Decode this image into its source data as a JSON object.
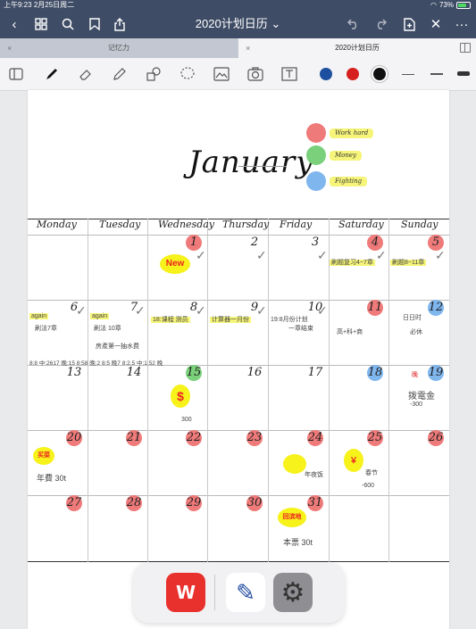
{
  "status": {
    "time": "上午9:23",
    "date": "2月25日周二",
    "battery": "73%",
    "battery_level": 0.73
  },
  "topbar": {
    "title": "2020计划日历",
    "icons": [
      "back-icon",
      "grid-icon",
      "search-icon",
      "bookmark-icon",
      "share-icon",
      "undo-icon",
      "redo-icon",
      "add-page-icon",
      "close-icon",
      "more-icon"
    ]
  },
  "tabs": [
    {
      "label": "记忆力",
      "close": "×"
    },
    {
      "label": "2020计划日历",
      "close": "×"
    }
  ],
  "toolbar": {
    "tools": [
      "sidebar-icon",
      "pen-icon",
      "eraser-icon",
      "highlighter-icon",
      "shapes-icon",
      "lasso-icon",
      "image-icon",
      "camera-icon",
      "text-icon"
    ],
    "colors": [
      "#1c4fa0",
      "#d62020",
      "#111111"
    ]
  },
  "page": {
    "month": "January",
    "legend": [
      {
        "color": "#ef7a7a",
        "label": "Work hard"
      },
      {
        "color": "#7bd07b",
        "label": "Money"
      },
      {
        "color": "#7fb6ee",
        "label": "Fighting"
      }
    ],
    "weekdays": [
      "Monday",
      "Tuesday",
      "Wednesday",
      "Thursday",
      "Friday",
      "Saturday",
      "Sunday"
    ],
    "weeks": [
      [
        "",
        "",
        "1",
        "2",
        "3",
        "4",
        "5"
      ],
      [
        "6",
        "7",
        "8",
        "9",
        "10",
        "11",
        "12"
      ],
      [
        "13",
        "14",
        "15",
        "16",
        "17",
        "18",
        "19"
      ],
      [
        "20",
        "21",
        "22",
        "23",
        "24",
        "25",
        "26"
      ],
      [
        "27",
        "28",
        "29",
        "30",
        "31",
        "",
        ""
      ]
    ],
    "notes": {
      "new": "New",
      "sat4": "刷题复习4~7章",
      "sun5": "刷题8~11章",
      "mon6a": "again",
      "mon6b": "刷法7章",
      "tue7a": "again",
      "tue7b": "刷法 10章",
      "tue7c": "房產第一抽水费",
      "wed8a": "18:课程 测员",
      "thu9a": "计算器一月份",
      "fri10a": "19:8月份计划",
      "fri10b": "一章结束",
      "sat11": "高+科+商",
      "sun12a": "日日时",
      "sun12b": "必休",
      "times": "8:8 中:2617 晚:15 8:58   晚:2  8:5   晚7   8:2.5 中:1.52 晚",
      "wed15": "$",
      "wed15b": "300",
      "sun19a": "晚",
      "sun19b": "拨電金",
      "sun19c": "-300",
      "mon20a": "买菜",
      "mon20b": "年費 30t",
      "fri24": "年夜饭",
      "sat25a": "￥",
      "sat25b": "春节",
      "sat25c": "-600",
      "fri31a": "回滨地",
      "fri31b": "本票 30t"
    }
  },
  "dock": {
    "apps": [
      {
        "name": "wps-app",
        "glyph": "W"
      },
      {
        "name": "notes-app",
        "glyph": "✎"
      },
      {
        "name": "settings-app",
        "glyph": "⚙"
      }
    ]
  }
}
